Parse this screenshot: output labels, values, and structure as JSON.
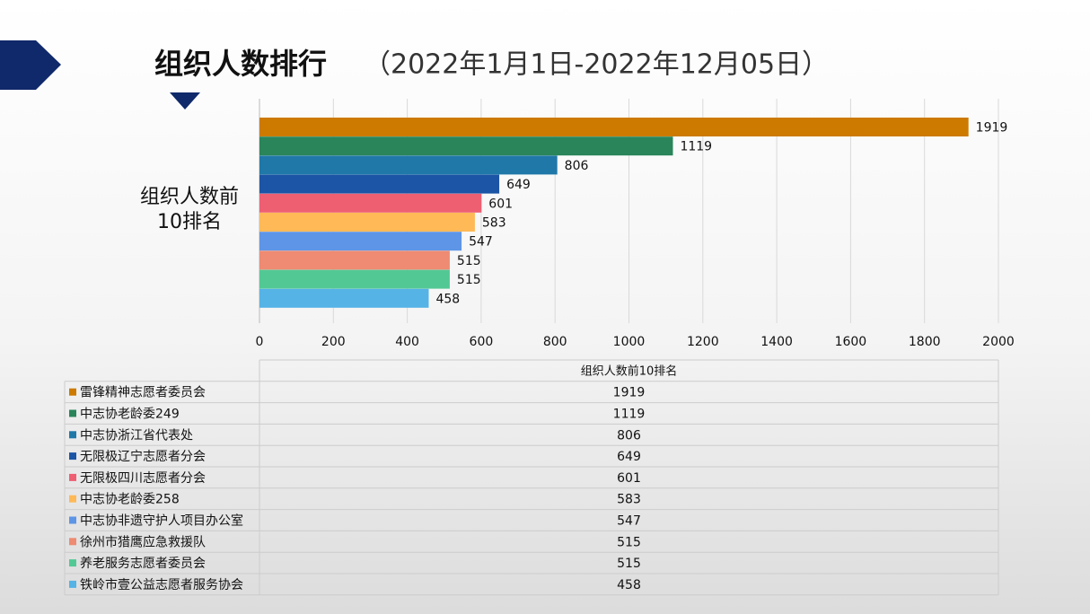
{
  "chart_data": {
    "type": "bar",
    "orientation": "horizontal",
    "title": "组织人数排行",
    "subtitle": "（2022年1月1日-2022年12月05日）",
    "categories": [
      "雷锋精神志愿者委员会",
      "中志协老龄委249",
      "中志协浙江省代表处",
      "无限极辽宁志愿者分会",
      "无限极四川志愿者分会",
      "中志协老龄委258",
      "中志协非遗守护人项目办公室",
      "徐州市猎鹰应急救援队",
      "养老服务志愿者委员会",
      "铁岭市壹公益志愿者服务协会"
    ],
    "series": [
      {
        "name": "组织人数前10排名",
        "values": [
          1919,
          1119,
          806,
          649,
          601,
          583,
          547,
          515,
          515,
          458
        ],
        "colors": [
          "#cc7a00",
          "#2a855a",
          "#1f78a8",
          "#1c55a5",
          "#ee5f72",
          "#ffb957",
          "#5e95e6",
          "#ee8b72",
          "#52c994",
          "#55b3e6"
        ]
      }
    ],
    "xlim": [
      0,
      2000
    ],
    "xticks": [
      0,
      200,
      400,
      600,
      800,
      1000,
      1200,
      1400,
      1600,
      1800,
      2000
    ],
    "grid": true,
    "data_table": true
  }
}
